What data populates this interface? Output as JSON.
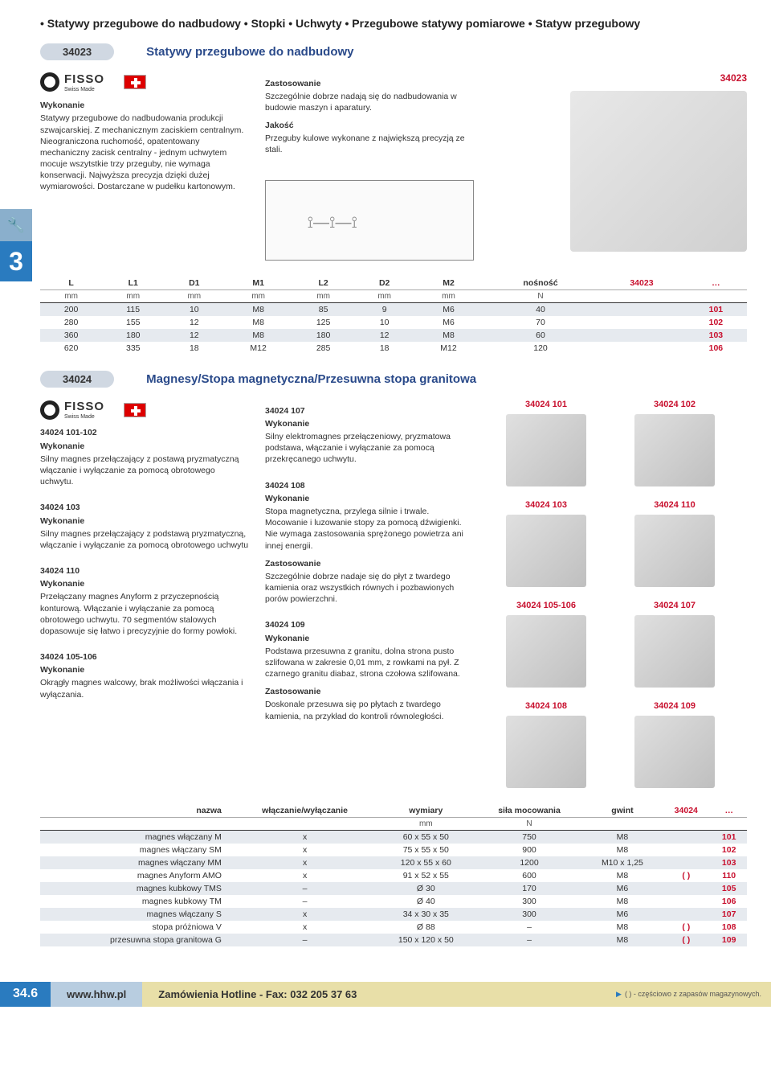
{
  "breadcrumb": "• Statywy przegubowe do nadbudowy • Stopki • Uchwyty • Przegubowe statywy pomiarowe • Statyw przegubowy",
  "sideTab": {
    "num": "3"
  },
  "section1": {
    "code": "34023",
    "title": "Statywy przegubowe do nadbudowy",
    "brand": "FISSO",
    "brandSub": "Swiss Made",
    "topRight": "34023",
    "leftCol": {
      "h1": "Wykonanie",
      "p1": "Statywy przegubowe do nadbudowania produkcji szwajcarskiej. Z mechanicznym zaciskiem centralnym. Nieograniczona ruchomość, opatentowany mechaniczny zacisk centralny - jednym uchwytem mocuje wszytstkie trzy przeguby, nie wymaga konserwacji. Najwyższa precyzja dzięki dużej wymiarowości. Dostarczane w pudełku kartonowym."
    },
    "midCol": {
      "h1": "Zastosowanie",
      "p1": "Szczególnie dobrze nadają się do nadbudowania w budowie maszyn i aparatury.",
      "h2": "Jakość",
      "p2": "Przeguby kulowe wykonane z największą precyzją ze stali."
    },
    "table": {
      "headers": [
        "L",
        "L1",
        "D1",
        "M1",
        "L2",
        "D2",
        "M2",
        "nośność",
        "34023",
        "…"
      ],
      "units": [
        "mm",
        "mm",
        "mm",
        "mm",
        "mm",
        "mm",
        "mm",
        "N",
        "",
        ""
      ],
      "rows": [
        [
          "200",
          "115",
          "10",
          "M8",
          "85",
          "9",
          "M6",
          "40",
          "",
          "101"
        ],
        [
          "280",
          "155",
          "12",
          "M8",
          "125",
          "10",
          "M6",
          "70",
          "",
          "102"
        ],
        [
          "360",
          "180",
          "12",
          "M8",
          "180",
          "12",
          "M8",
          "60",
          "",
          "103"
        ],
        [
          "620",
          "335",
          "18",
          "M12",
          "285",
          "18",
          "M12",
          "120",
          "",
          "106"
        ]
      ]
    }
  },
  "section2": {
    "code": "34024",
    "title": "Magnesy/Stopa magnetyczna/Przesuwna stopa granitowa",
    "brand": "FISSO",
    "brandSub": "Swiss Made",
    "leftCol": [
      {
        "h": "34024 101-102",
        "sub": "Wykonanie",
        "p": "Silny magnes przełączający z postawą pryzmatyczną włączanie i wyłączanie za pomocą obrotowego uchwytu."
      },
      {
        "h": "34024 103",
        "sub": "Wykonanie",
        "p": "Silny magnes przełączający z podstawą pryzmatyczną, włączanie i wyłączanie za pomocą obrotowego uchwytu"
      },
      {
        "h": "34024 110",
        "sub": "Wykonanie",
        "p": "Przełączany magnes Anyform z przyczepnością konturową. Włączanie i wyłączanie za pomocą obrotowego uchwytu. 70 segmentów stalowych dopasowuje się łatwo i precyzyjnie do formy powłoki."
      },
      {
        "h": "34024 105-106",
        "sub": "Wykonanie",
        "p": "Okrągły magnes walcowy, brak możliwości włączania i wyłączania."
      }
    ],
    "midCol": [
      {
        "h": "34024 107",
        "sub": "Wykonanie",
        "p": "Silny elektromagnes przełączeniowy, pryzmatowa podstawa, włączanie i wyłączanie za pomocą przekręcanego uchwytu."
      },
      {
        "h": "34024 108",
        "sub": "Wykonanie",
        "p": "Stopa magnetyczna, przylega silnie i trwale. Mocowanie i luzowanie stopy za pomocą dźwigienki. Nie wymaga zastosowania sprężonego powietrza ani innej energii.",
        "h2": "Zastosowanie",
        "p2": "Szczególnie dobrze nadaje się do płyt z twardego kamienia oraz wszystkich równych i pozbawionych porów powierzchni."
      },
      {
        "h": "34024 109",
        "sub": "Wykonanie",
        "p": "Podstawa przesuwna z granitu, dolna strona pusto szlifowana w zakresie 0,01 mm, z rowkami na pył. Z czarnego granitu diabaz, strona czołowa szlifowana.",
        "h2": "Zastosowanie",
        "p2": "Doskonale przesuwa się po płytach z twardego kamienia, na przykład do kontroli równoległości."
      }
    ],
    "images": [
      "34024 101",
      "34024 102",
      "34024 103",
      "34024 110",
      "34024 105-106",
      "34024 107",
      "34024 108",
      "34024 109"
    ],
    "table": {
      "headers": [
        "nazwa",
        "włączanie/wyłączanie",
        "wymiary",
        "siła mocowania",
        "gwint",
        "34024",
        "…"
      ],
      "units": [
        "",
        "",
        "mm",
        "N",
        "",
        "",
        ""
      ],
      "rows": [
        [
          "magnes włączany M",
          "x",
          "60 x 55 x 50",
          "750",
          "M8",
          "",
          "101"
        ],
        [
          "magnes włączany SM",
          "x",
          "75 x 55 x 50",
          "900",
          "M8",
          "",
          "102"
        ],
        [
          "magnes włączany MM",
          "x",
          "120 x 55 x 60",
          "1200",
          "M10 x 1,25",
          "",
          "103"
        ],
        [
          "magnes Anyform AMO",
          "x",
          "91 x 52 x 55",
          "600",
          "M8",
          "( )",
          "110"
        ],
        [
          "magnes kubkowy TMS",
          "–",
          "Ø 30",
          "170",
          "M6",
          "",
          "105"
        ],
        [
          "magnes kubkowy TM",
          "–",
          "Ø 40",
          "300",
          "M8",
          "",
          "106"
        ],
        [
          "magnes włączany S",
          "x",
          "34 x 30 x 35",
          "300",
          "M6",
          "",
          "107"
        ],
        [
          "stopa próżniowa V",
          "x",
          "Ø 88",
          "–",
          "M8",
          "( )",
          "108"
        ],
        [
          "przesuwna stopa granitowa G",
          "–",
          "150 x 120 x 50",
          "–",
          "M8",
          "( )",
          "109"
        ]
      ]
    }
  },
  "footer": {
    "page": "34.6",
    "link": "www.hhw.pl",
    "hotline": "Zamówienia Hotline - Fax: 032 205 37 63",
    "note": "( ) - częściowo z zapasów magazynowych."
  }
}
